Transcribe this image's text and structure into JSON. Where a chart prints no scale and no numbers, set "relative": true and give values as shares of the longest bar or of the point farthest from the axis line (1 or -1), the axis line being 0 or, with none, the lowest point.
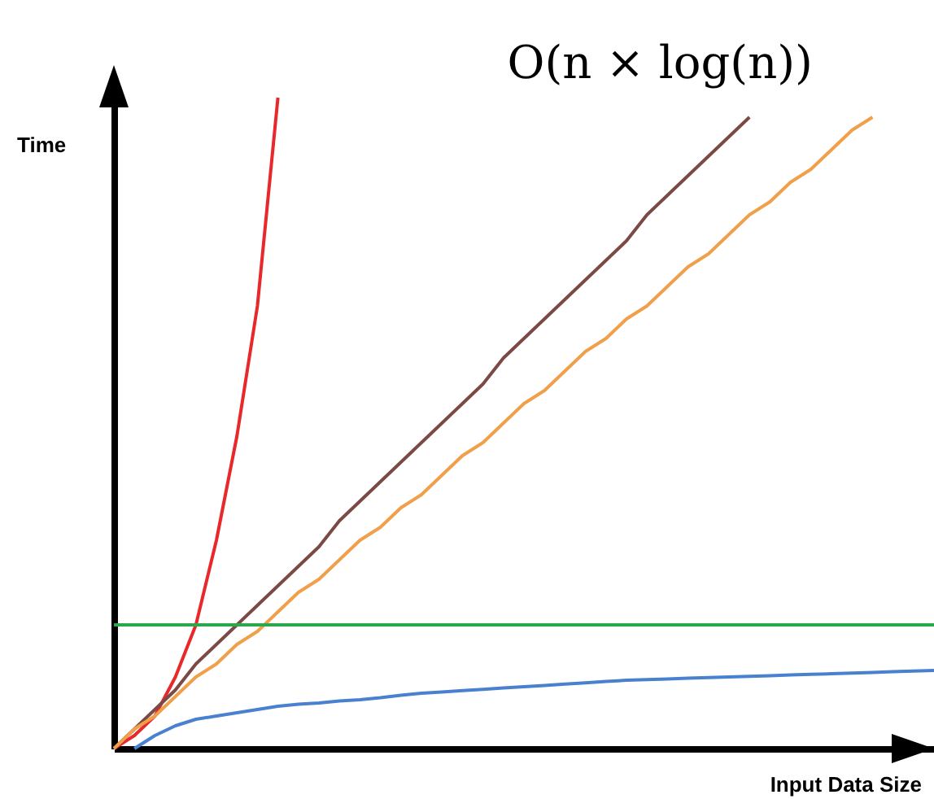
{
  "chart_data": {
    "type": "line",
    "relative": true,
    "xlabel": "Input Data Size",
    "ylabel": "Time",
    "legend": false,
    "marker": "none",
    "grid": false,
    "line_style": "solid",
    "categories": [
      null,
      null,
      null,
      null,
      null,
      null,
      null,
      null,
      null,
      null,
      null,
      null,
      null,
      null,
      null,
      null,
      null,
      null,
      null,
      null,
      null,
      null,
      null,
      null,
      null,
      null,
      null,
      null,
      null,
      null,
      null,
      null,
      null,
      null,
      null,
      null,
      null,
      null,
      null,
      null,
      null
    ],
    "series": [
      {
        "color": "#e8282a",
        "values": [
          0,
          0.02,
          0.05,
          0.11,
          0.19,
          0.32,
          0.48,
          0.68,
          1.0,
          null,
          null,
          null,
          null,
          null,
          null,
          null,
          null,
          null,
          null,
          null,
          null,
          null,
          null,
          null,
          null,
          null,
          null,
          null,
          null,
          null,
          null,
          null,
          null,
          null,
          null,
          null,
          null,
          null,
          null,
          null,
          null
        ]
      },
      {
        "name": "O(n × log(n))",
        "color": "#7b4a45",
        "values": [
          0,
          0.03,
          0.06,
          0.09,
          0.13,
          0.16,
          0.19,
          0.22,
          0.25,
          0.28,
          0.31,
          0.35,
          0.38,
          0.41,
          0.44,
          0.47,
          0.5,
          0.53,
          0.56,
          0.6,
          0.63,
          0.66,
          0.69,
          0.72,
          0.75,
          0.78,
          0.82,
          0.85,
          0.88,
          0.91,
          0.94,
          0.97,
          null,
          null,
          null,
          null,
          null,
          null,
          null,
          null,
          null
        ]
      },
      {
        "color": "#f0a04b",
        "values": [
          0,
          0.03,
          0.05,
          0.08,
          0.11,
          0.13,
          0.16,
          0.18,
          0.21,
          0.24,
          0.26,
          0.29,
          0.32,
          0.34,
          0.37,
          0.39,
          0.42,
          0.45,
          0.47,
          0.5,
          0.53,
          0.55,
          0.58,
          0.61,
          0.63,
          0.66,
          0.68,
          0.71,
          0.74,
          0.76,
          0.79,
          0.82,
          0.84,
          0.87,
          0.89,
          0.92,
          0.95,
          0.97,
          null,
          null,
          null
        ]
      },
      {
        "color": "#2aa84a",
        "values": [
          0.19,
          0.19,
          0.19,
          0.19,
          0.19,
          0.19,
          0.19,
          0.19,
          0.19,
          0.19,
          0.19,
          0.19,
          0.19,
          0.19,
          0.19,
          0.19,
          0.19,
          0.19,
          0.19,
          0.19,
          0.19,
          0.19,
          0.19,
          0.19,
          0.19,
          0.19,
          0.19,
          0.19,
          0.19,
          0.19,
          0.19,
          0.19,
          0.19,
          0.19,
          0.19,
          0.19,
          0.19,
          0.19,
          0.19,
          0.19,
          0.19
        ]
      },
      {
        "color": "#4a80d0",
        "values": [
          null,
          0,
          0.02,
          0.035,
          0.045,
          0.05,
          0.055,
          0.06,
          0.065,
          0.068,
          0.07,
          0.073,
          0.075,
          0.078,
          0.082,
          0.085,
          0.087,
          0.089,
          0.091,
          0.093,
          0.095,
          0.097,
          0.099,
          0.101,
          0.103,
          0.105,
          0.106,
          0.107,
          0.108,
          0.109,
          0.11,
          0.111,
          0.112,
          0.113,
          0.114,
          0.115,
          0.116,
          0.117,
          0.118,
          0.119,
          0.12
        ]
      }
    ]
  }
}
